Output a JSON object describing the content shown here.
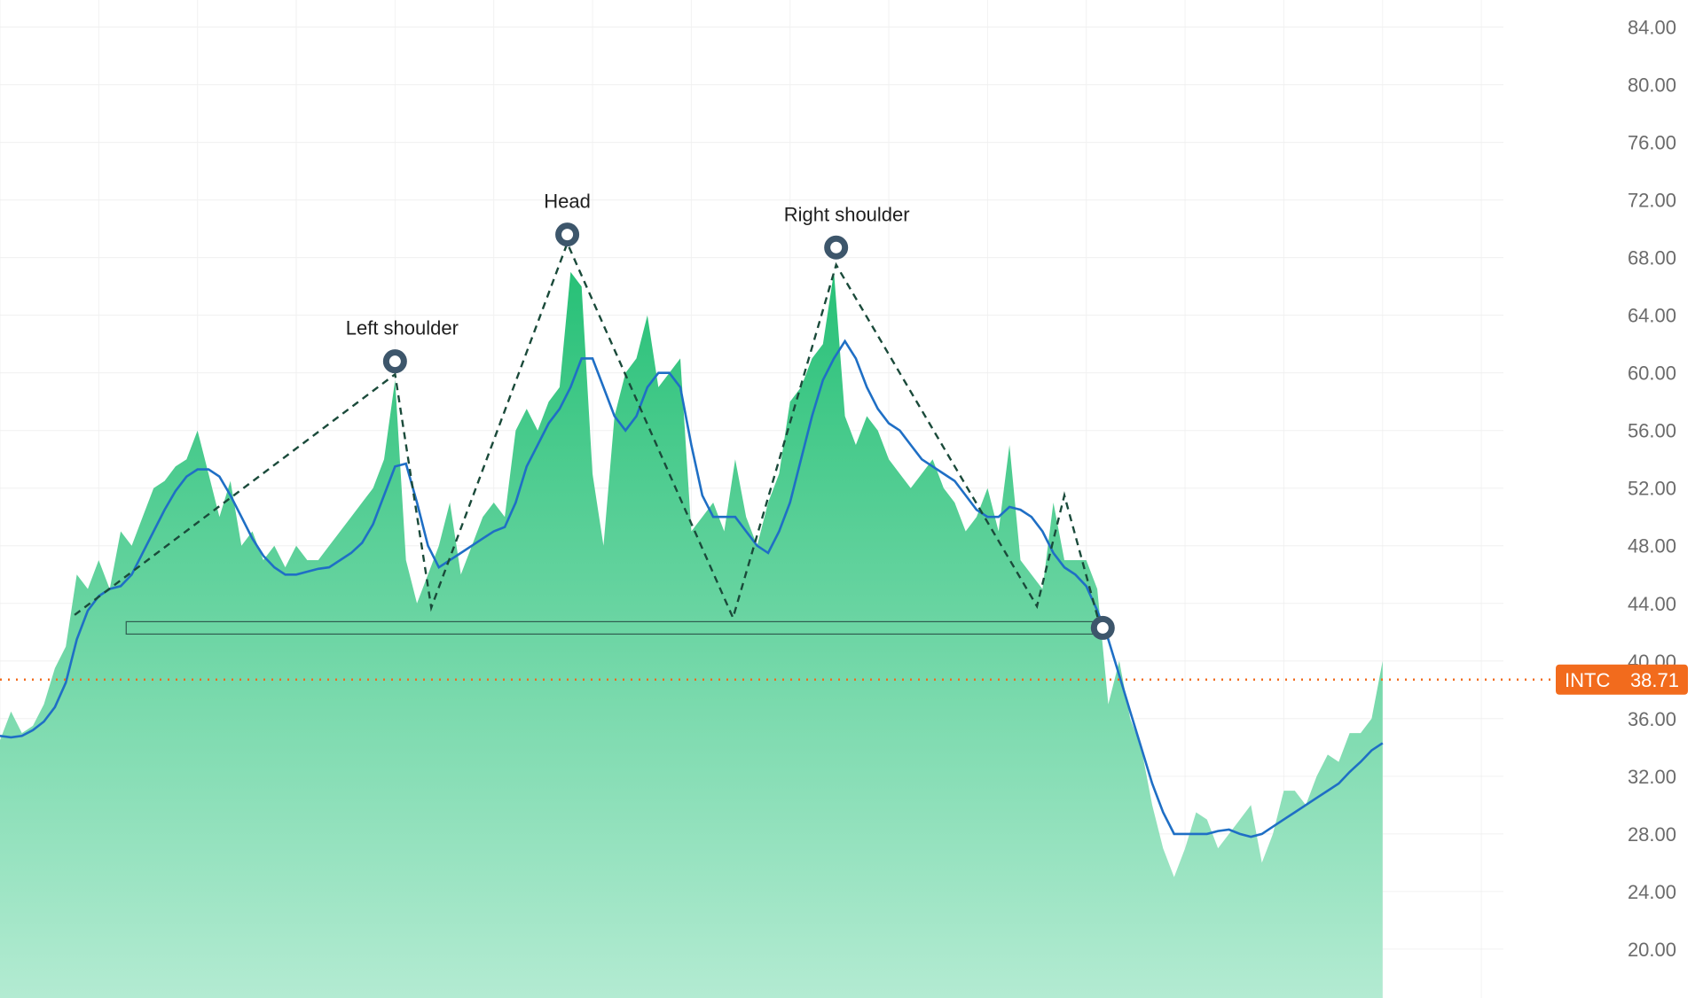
{
  "chart_data": {
    "type": "area",
    "ylim": [
      16.61,
      85.88
    ],
    "yticks": [
      {
        "value": 20,
        "label": "20.00"
      },
      {
        "value": 24,
        "label": "24.00"
      },
      {
        "value": 28,
        "label": "28.00"
      },
      {
        "value": 32,
        "label": "32.00"
      },
      {
        "value": 36,
        "label": "36.00"
      },
      {
        "value": 40,
        "label": "40.00"
      },
      {
        "value": 44,
        "label": "44.00"
      },
      {
        "value": 48,
        "label": "48.00"
      },
      {
        "value": 52,
        "label": "52.00"
      },
      {
        "value": 56,
        "label": "56.00"
      },
      {
        "value": 60,
        "label": "60.00"
      },
      {
        "value": 64,
        "label": "64.00"
      },
      {
        "value": 68,
        "label": "68.00"
      },
      {
        "value": 72,
        "label": "72.00"
      },
      {
        "value": 76,
        "label": "76.00"
      },
      {
        "value": 80,
        "label": "80.00"
      },
      {
        "value": 84,
        "label": "84.00"
      }
    ],
    "grid": true,
    "series": [
      {
        "name": "INTC",
        "color": "#2fc47b",
        "values": [
          34.5,
          36.5,
          35,
          35.5,
          37,
          39.5,
          41,
          46,
          45,
          47,
          45,
          49,
          48,
          50,
          52,
          52.5,
          53.5,
          54,
          56,
          53,
          50,
          52.5,
          48,
          49,
          47,
          48,
          46.5,
          48,
          47,
          47,
          48,
          49,
          50,
          51,
          52,
          54,
          59.5,
          47,
          44,
          46,
          48,
          51,
          46,
          48,
          50,
          51,
          50,
          56,
          57.5,
          56,
          58,
          59,
          67,
          66,
          53,
          48,
          57,
          60,
          61,
          64,
          59,
          60,
          61,
          49,
          50,
          51,
          49,
          54,
          50,
          48,
          51,
          53,
          58,
          59,
          61,
          62,
          67,
          57,
          55,
          57,
          56,
          54,
          53,
          52,
          53,
          54,
          52,
          51,
          49,
          50,
          52,
          49,
          55,
          47,
          46,
          45,
          51,
          47,
          47,
          47,
          45,
          37,
          40,
          36,
          34,
          30,
          27,
          25,
          27,
          29.5,
          29,
          27,
          28,
          29,
          30,
          26,
          28,
          31,
          31,
          30,
          32,
          33.5,
          33,
          35,
          35,
          36,
          40
        ]
      },
      {
        "name": "Moving average",
        "color": "#1f6fc5",
        "values": [
          34.8,
          34.7,
          34.8,
          35.2,
          35.8,
          36.8,
          38.5,
          41.5,
          43.5,
          44.5,
          45,
          45.2,
          46,
          47.5,
          49,
          50.5,
          51.8,
          52.8,
          53.3,
          53.3,
          52.8,
          51.5,
          50,
          48.5,
          47.3,
          46.5,
          46,
          46,
          46.2,
          46.4,
          46.5,
          47,
          47.5,
          48.2,
          49.5,
          51.5,
          53.5,
          53.7,
          51,
          48,
          46.5,
          47,
          47.5,
          48,
          48.5,
          49,
          49.3,
          51,
          53.5,
          55,
          56.5,
          57.5,
          59,
          61,
          61,
          59,
          57,
          56,
          57,
          59,
          60,
          60,
          59,
          55,
          51.5,
          50,
          50,
          50,
          49,
          48,
          47.5,
          49,
          51,
          54,
          57,
          59.5,
          61,
          62.2,
          61,
          59,
          57.5,
          56.5,
          56,
          55,
          54,
          53.5,
          53,
          52.5,
          51.5,
          50.5,
          50,
          50,
          50.7,
          50.5,
          50,
          49,
          47.5,
          46.5,
          46,
          45.2,
          43.5,
          41.5,
          39,
          36.5,
          34,
          31.5,
          29.5,
          28,
          28,
          28,
          28,
          28.2,
          28.3,
          28,
          27.8,
          28,
          28.5,
          29,
          29.5,
          30,
          30.5,
          31,
          31.5,
          32.3,
          33,
          33.8,
          34.3
        ]
      }
    ],
    "pattern": {
      "x": [
        6.8,
        36,
        39.3,
        51.7,
        66.8,
        76.2,
        94.5,
        97,
        100.3
      ],
      "values": [
        43.2,
        59.9,
        43.7,
        69,
        43,
        67.5,
        43.8,
        51.5,
        42.3
      ]
    },
    "neckline": {
      "x": [
        11.5,
        100
      ],
      "value": 42.3
    },
    "annotations": [
      {
        "text": "Left shoulder",
        "x": 36,
        "value": 60.8
      },
      {
        "text": "Head",
        "x": 51.7,
        "value": 69.6
      },
      {
        "text": "Right shoulder",
        "x": 76.2,
        "value": 68.7
      },
      {
        "text": null,
        "x": 100.5,
        "value": 42.3
      }
    ],
    "current_price": {
      "symbol": "INTC",
      "value": 38.71,
      "label": "38.71",
      "color": "#f26b1d"
    }
  }
}
